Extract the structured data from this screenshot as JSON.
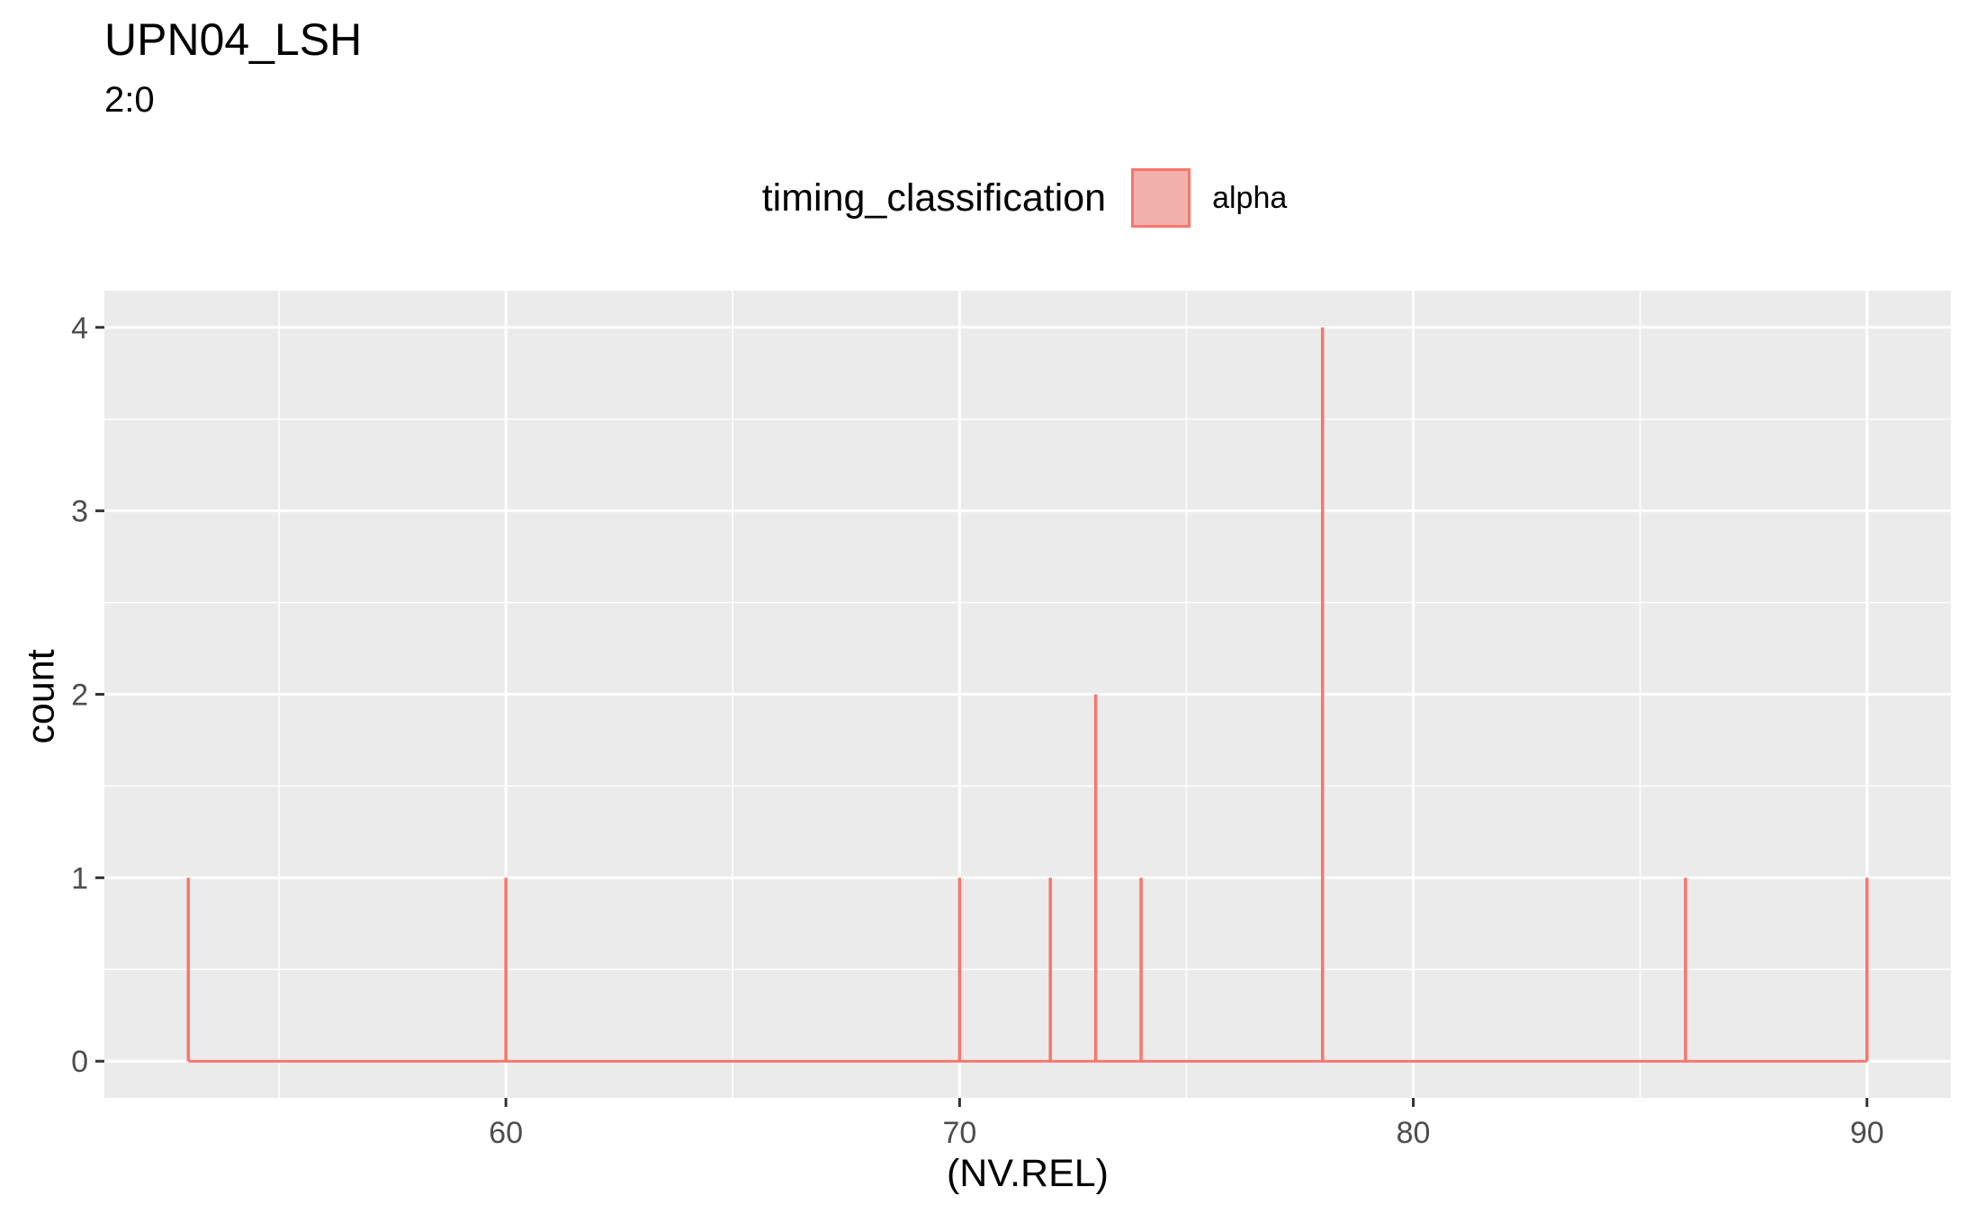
{
  "chart_data": {
    "type": "histogram",
    "title": "UPN04_LSH",
    "subtitle": "2:0",
    "xlabel": "(NV.REL)",
    "ylabel": "count",
    "legend": {
      "title": "timing_classification",
      "position": "top",
      "entries": [
        {
          "label": "alpha",
          "fill": "#F3B1AC",
          "stroke": "#F8766D"
        }
      ]
    },
    "xlim": [
      51.15,
      91.85
    ],
    "ylim": [
      -0.2,
      4.2
    ],
    "x_ticks": [
      60,
      70,
      80,
      90
    ],
    "y_ticks": [
      0,
      1,
      2,
      3,
      4
    ],
    "grid": true,
    "series": [
      {
        "name": "alpha",
        "color": "#F8766D",
        "x": [
          53.0,
          60.0,
          70.0,
          72.0,
          73.0,
          74.0,
          78.0,
          86.0,
          90.0
        ],
        "y": [
          1,
          1,
          1,
          1,
          2,
          1,
          4,
          1,
          1
        ]
      }
    ]
  }
}
